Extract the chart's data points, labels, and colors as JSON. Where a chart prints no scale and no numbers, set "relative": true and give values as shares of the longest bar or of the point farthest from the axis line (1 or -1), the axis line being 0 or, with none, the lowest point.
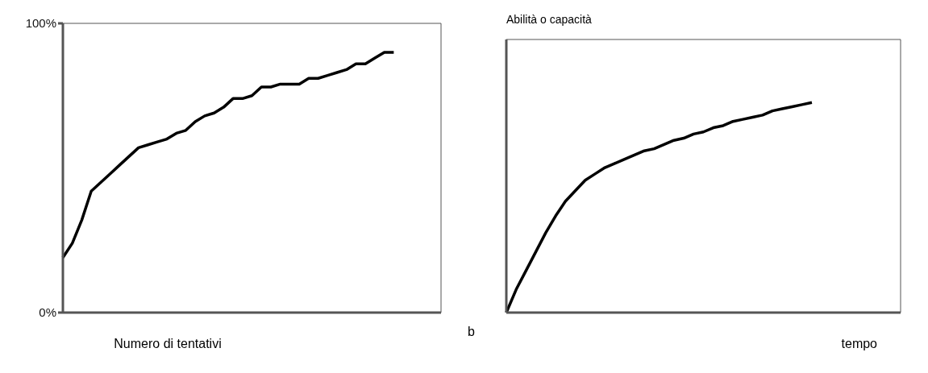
{
  "chart_data": [
    {
      "type": "line",
      "xlabel": "Numero di tentativi",
      "categories": [
        null,
        null,
        null,
        null,
        null,
        null,
        null,
        null,
        null,
        null,
        null,
        null,
        null,
        null,
        null,
        null,
        null,
        null,
        null,
        null,
        null,
        null,
        null,
        null,
        null,
        null,
        null,
        null,
        null,
        null,
        null,
        null,
        null,
        null,
        null,
        null,
        null,
        null,
        null,
        null,
        null
      ],
      "values": [
        19,
        24,
        32,
        42,
        45,
        48,
        51,
        54,
        57,
        58,
        59,
        60,
        62,
        63,
        66,
        68,
        69,
        71,
        74,
        74,
        75,
        78,
        78,
        79,
        79,
        79,
        81,
        81,
        82,
        83,
        84,
        86,
        86,
        88,
        90,
        90,
        null,
        null,
        null,
        null,
        null
      ],
      "color": "#000000",
      "ylim": [
        0,
        100
      ],
      "yticks": [
        {
          "value": 0,
          "label": "0%"
        },
        {
          "value": 100,
          "label": "100%"
        }
      ],
      "tick_labels": "y"
    },
    {
      "type": "line",
      "xlabel": "tempo",
      "ylabel": "Abilità o capacità",
      "annotations": [
        "b"
      ],
      "relative": true,
      "tick_labels": false,
      "categories": [
        null,
        null,
        null,
        null,
        null,
        null,
        null,
        null,
        null,
        null,
        null,
        null,
        null,
        null,
        null,
        null,
        null,
        null,
        null,
        null,
        null,
        null,
        null,
        null,
        null,
        null,
        null,
        null,
        null,
        null,
        null,
        null,
        null,
        null,
        null,
        null,
        null,
        null,
        null,
        null,
        null
      ],
      "values": [
        0,
        0.11,
        0.2,
        0.29,
        0.38,
        0.46,
        0.53,
        0.58,
        0.63,
        0.66,
        0.69,
        0.71,
        0.73,
        0.75,
        0.77,
        0.78,
        0.8,
        0.82,
        0.83,
        0.85,
        0.86,
        0.88,
        0.89,
        0.91,
        0.92,
        0.93,
        0.94,
        0.96,
        0.97,
        0.98,
        0.99,
        1,
        null,
        null,
        null,
        null,
        null,
        null,
        null,
        null,
        null
      ],
      "color": "#000000"
    }
  ]
}
